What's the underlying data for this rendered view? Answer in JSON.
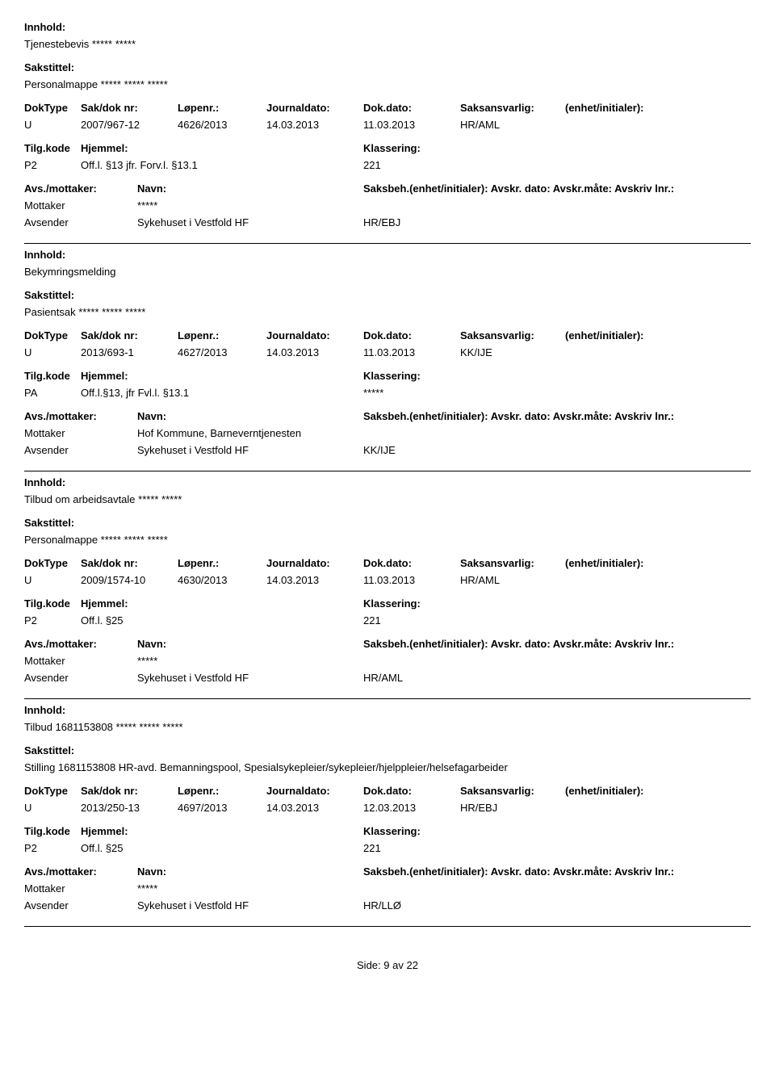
{
  "labels": {
    "innhold": "Innhold:",
    "sakstittel": "Sakstittel:",
    "doktype": "DokType",
    "sakdoknr": "Sak/dok nr:",
    "lopenr": "Løpenr.:",
    "journaldato": "Journaldato:",
    "dokdato": "Dok.dato:",
    "saksansvarlig": "Saksansvarlig:",
    "enhet": "(enhet/initialer):",
    "tilgkode": "Tilg.kode",
    "hjemmel": "Hjemmel:",
    "klassering": "Klassering:",
    "avsmottaker": "Avs./mottaker:",
    "navn": "Navn:",
    "saksbeh_full": "Saksbeh.(enhet/initialer): Avskr. dato: Avskr.måte: Avskriv lnr.:",
    "mottaker": "Mottaker",
    "avsender": "Avsender",
    "side": "Side:",
    "av": "av"
  },
  "footer": {
    "page": "9",
    "total": "22"
  },
  "records": [
    {
      "innhold": "Tjenestebevis ***** *****",
      "sakstittel": "Personalmappe ***** ***** *****",
      "doktype": "U",
      "sakdoknr": "2007/967-12",
      "lopenr": "4626/2013",
      "journaldato": "14.03.2013",
      "dokdato": "11.03.2013",
      "saksansvarlig": "HR/AML",
      "enhet": "",
      "tilgkode": "P2",
      "hjemmel": "Off.l. §13 jfr. Forv.l. §13.1",
      "klassering": "221",
      "parties": [
        {
          "role": "Mottaker",
          "name": "*****",
          "init": ""
        },
        {
          "role": "Avsender",
          "name": "Sykehuset i Vestfold HF",
          "init": "HR/EBJ"
        }
      ]
    },
    {
      "innhold": "Bekymringsmelding",
      "sakstittel": "Pasientsak ***** ***** *****",
      "doktype": "U",
      "sakdoknr": "2013/693-1",
      "lopenr": "4627/2013",
      "journaldato": "14.03.2013",
      "dokdato": "11.03.2013",
      "saksansvarlig": "KK/IJE",
      "enhet": "",
      "tilgkode": "PA",
      "hjemmel": "Off.l.§13, jfr Fvl.l. §13.1",
      "klassering": "*****",
      "parties": [
        {
          "role": "Mottaker",
          "name": "Hof Kommune, Barneverntjenesten",
          "init": ""
        },
        {
          "role": "Avsender",
          "name": "Sykehuset i Vestfold HF",
          "init": "KK/IJE"
        }
      ]
    },
    {
      "innhold": "Tilbud om arbeidsavtale  ***** *****",
      "sakstittel": "Personalmappe ***** ***** *****",
      "doktype": "U",
      "sakdoknr": "2009/1574-10",
      "lopenr": "4630/2013",
      "journaldato": "14.03.2013",
      "dokdato": "11.03.2013",
      "saksansvarlig": "HR/AML",
      "enhet": "",
      "tilgkode": "P2",
      "hjemmel": "Off.l. §25",
      "klassering": "221",
      "parties": [
        {
          "role": "Mottaker",
          "name": "*****",
          "init": ""
        },
        {
          "role": "Avsender",
          "name": "Sykehuset i Vestfold HF",
          "init": "HR/AML"
        }
      ]
    },
    {
      "innhold": "Tilbud 1681153808 ***** ***** *****",
      "sakstittel": "Stilling 1681153808 HR-avd. Bemanningspool, Spesialsykepleier/sykepleier/hjelppleier/helsefagarbeider",
      "doktype": "U",
      "sakdoknr": "2013/250-13",
      "lopenr": "4697/2013",
      "journaldato": "14.03.2013",
      "dokdato": "12.03.2013",
      "saksansvarlig": "HR/EBJ",
      "enhet": "",
      "tilgkode": "P2",
      "hjemmel": "Off.l. §25",
      "klassering": "221",
      "parties": [
        {
          "role": "Mottaker",
          "name": "*****",
          "init": ""
        },
        {
          "role": "Avsender",
          "name": "Sykehuset i Vestfold HF",
          "init": "HR/LLØ"
        }
      ]
    }
  ]
}
